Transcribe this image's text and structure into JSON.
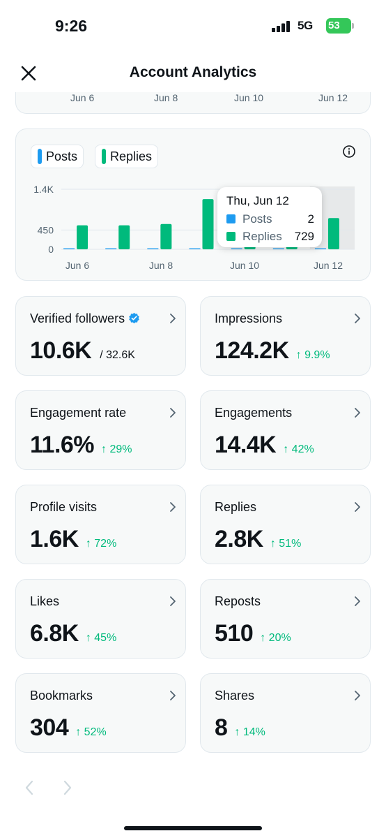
{
  "status_bar": {
    "time": "9:26",
    "network": "5G",
    "battery": "53"
  },
  "header": {
    "title": "Account Analytics"
  },
  "top_chart": {
    "ticks": [
      "Jun 6",
      "Jun 8",
      "Jun 10",
      "Jun 12"
    ]
  },
  "chart_data": {
    "type": "bar",
    "categories": [
      "Jun 6",
      "Jun 7",
      "Jun 8",
      "Jun 9",
      "Jun 10",
      "Jun 11",
      "Jun 12"
    ],
    "x_tick_labels": [
      "Jun 6",
      "Jun 8",
      "Jun 10",
      "Jun 12"
    ],
    "y_tick_labels": [
      "0",
      "450",
      "1.4K"
    ],
    "ylim": [
      0,
      1400
    ],
    "series": [
      {
        "name": "Posts",
        "color": "#1d9bf0",
        "values": [
          0,
          0,
          0,
          0,
          0,
          0,
          2
        ]
      },
      {
        "name": "Replies",
        "color": "#00ba7c",
        "values": [
          560,
          560,
          590,
          1170,
          370,
          370,
          729
        ]
      }
    ],
    "highlighted_category": "Jun 12",
    "grid": true,
    "legend_placement": "top-left"
  },
  "tooltip": {
    "title": "Thu, Jun 12",
    "rows": [
      {
        "label": "Posts",
        "value": "2",
        "color": "#1d9bf0"
      },
      {
        "label": "Replies",
        "value": "729",
        "color": "#00ba7c"
      }
    ]
  },
  "legend": [
    {
      "label": "Posts",
      "color": "#1d9bf0"
    },
    {
      "label": "Replies",
      "color": "#00ba7c"
    }
  ],
  "metrics": [
    {
      "label": "Verified followers",
      "value": "10.6K",
      "total": "/ 32.6K",
      "delta": ""
    },
    {
      "label": "Impressions",
      "value": "124.2K",
      "total": "",
      "delta": "↑ 9.9%"
    },
    {
      "label": "Engagement rate",
      "value": "11.6%",
      "total": "",
      "delta": "↑ 29%"
    },
    {
      "label": "Engagements",
      "value": "14.4K",
      "total": "",
      "delta": "↑ 42%"
    },
    {
      "label": "Profile visits",
      "value": "1.6K",
      "total": "",
      "delta": "↑ 72%"
    },
    {
      "label": "Replies",
      "value": "2.8K",
      "total": "",
      "delta": "↑ 51%"
    },
    {
      "label": "Likes",
      "value": "6.8K",
      "total": "",
      "delta": "↑ 45%"
    },
    {
      "label": "Reposts",
      "value": "510",
      "total": "",
      "delta": "↑ 20%"
    },
    {
      "label": "Bookmarks",
      "value": "304",
      "total": "",
      "delta": "↑ 52%"
    },
    {
      "label": "Shares",
      "value": "8",
      "total": "",
      "delta": "↑ 14%"
    }
  ],
  "colors": {
    "accent_green": "#00ba7c",
    "accent_blue": "#1d9bf0",
    "verified": "#1d9bf0"
  },
  "icons": {
    "close": "close-icon",
    "info": "info-icon",
    "chevron": "chevron-right-icon",
    "verified": "verified-badge-icon",
    "prev": "chevron-left-icon",
    "next": "chevron-right-icon"
  }
}
